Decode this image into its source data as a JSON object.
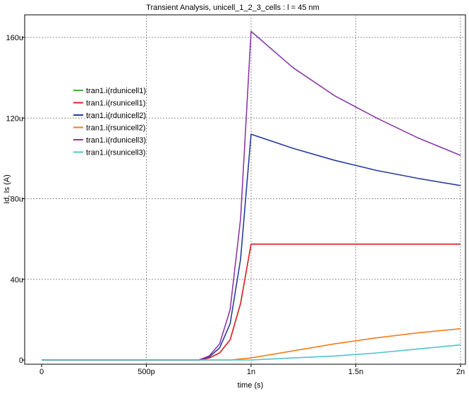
{
  "chart_data": {
    "type": "line",
    "title": "Transient Analysis, unicell_1_2_3_cells : l = 45 nm",
    "xlabel": "time (s)",
    "ylabel": "Id, Is (A)",
    "xlim": [
      0,
      2.0
    ],
    "ylim": [
      -1,
      166
    ],
    "x_unit": "ns",
    "y_unit": "uA",
    "x_ticks": [
      {
        "value": 0,
        "label": "0"
      },
      {
        "value": 0.5,
        "label": "500p"
      },
      {
        "value": 1.0,
        "label": "1n"
      },
      {
        "value": 1.5,
        "label": "1.5n"
      },
      {
        "value": 2.0,
        "label": "2n"
      }
    ],
    "y_ticks": [
      {
        "value": 0,
        "label": "0"
      },
      {
        "value": 40,
        "label": "40u"
      },
      {
        "value": 80,
        "label": "80u"
      },
      {
        "value": 120,
        "label": "120u"
      },
      {
        "value": 160,
        "label": "160u"
      }
    ],
    "grid": true,
    "legend": {
      "position": "top-left"
    },
    "series": [
      {
        "name": "tran1.i(rdunicell1)",
        "color": "#3cb43c",
        "points": [
          [
            0,
            0
          ],
          [
            0.75,
            0
          ],
          [
            0.8,
            1
          ],
          [
            0.85,
            3.5
          ],
          [
            0.9,
            10
          ],
          [
            0.95,
            28
          ],
          [
            1.0,
            57.5
          ],
          [
            1.25,
            57.5
          ],
          [
            1.5,
            57.5
          ],
          [
            1.75,
            57.5
          ],
          [
            2.0,
            57.5
          ]
        ]
      },
      {
        "name": "tran1.i(rsunicell1)",
        "color": "#e8202a",
        "points": [
          [
            0,
            0
          ],
          [
            0.75,
            0
          ],
          [
            0.8,
            1
          ],
          [
            0.85,
            3.5
          ],
          [
            0.9,
            10
          ],
          [
            0.95,
            28
          ],
          [
            1.0,
            57.5
          ],
          [
            1.25,
            57.5
          ],
          [
            1.5,
            57.5
          ],
          [
            1.75,
            57.5
          ],
          [
            2.0,
            57.5
          ]
        ]
      },
      {
        "name": "tran1.i(rdunicell2)",
        "color": "#283c9c",
        "points": [
          [
            0,
            0
          ],
          [
            0.75,
            0
          ],
          [
            0.8,
            1.5
          ],
          [
            0.85,
            6
          ],
          [
            0.9,
            18
          ],
          [
            0.95,
            50
          ],
          [
            1.0,
            112
          ],
          [
            1.2,
            105
          ],
          [
            1.4,
            99
          ],
          [
            1.6,
            94
          ],
          [
            1.8,
            90
          ],
          [
            2.0,
            86.5
          ]
        ]
      },
      {
        "name": "tran1.i(rsunicell2)",
        "color": "#f07c1e",
        "points": [
          [
            0,
            0
          ],
          [
            0.9,
            0
          ],
          [
            1.0,
            1
          ],
          [
            1.2,
            4.5
          ],
          [
            1.4,
            8
          ],
          [
            1.6,
            11
          ],
          [
            1.8,
            13.5
          ],
          [
            2.0,
            15.5
          ]
        ]
      },
      {
        "name": "tran1.i(rdunicell3)",
        "color": "#8a3aa6",
        "points": [
          [
            0,
            0
          ],
          [
            0.75,
            0
          ],
          [
            0.8,
            2
          ],
          [
            0.85,
            8
          ],
          [
            0.9,
            25
          ],
          [
            0.95,
            70
          ],
          [
            1.0,
            163
          ],
          [
            1.2,
            145
          ],
          [
            1.4,
            131
          ],
          [
            1.6,
            120
          ],
          [
            1.8,
            110
          ],
          [
            2.0,
            101.5
          ]
        ]
      },
      {
        "name": "tran1.i(rsunicell3)",
        "color": "#4ec4cc",
        "points": [
          [
            0,
            0
          ],
          [
            1.0,
            0
          ],
          [
            1.2,
            1
          ],
          [
            1.4,
            2
          ],
          [
            1.6,
            3.5
          ],
          [
            1.8,
            5.5
          ],
          [
            2.0,
            7.5
          ]
        ]
      }
    ]
  }
}
